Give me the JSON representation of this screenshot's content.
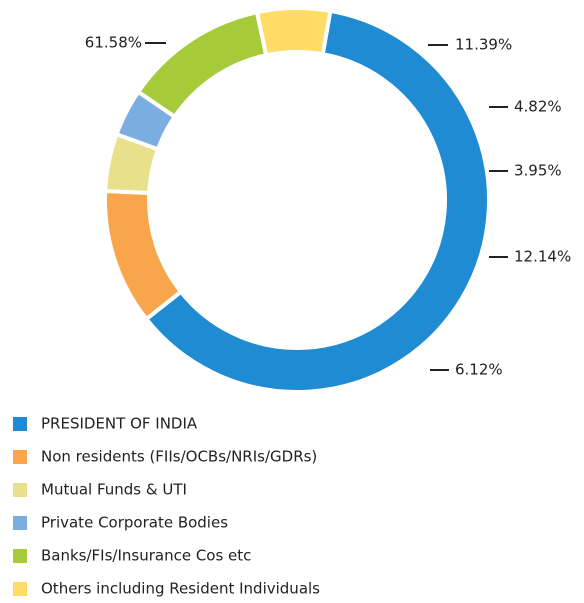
{
  "chart_data": {
    "type": "pie",
    "donut": true,
    "start_angle": 10,
    "categories": [
      "PRESIDENT OF INDIA",
      "Non residents (FIIs/OCBs/NRIs/GDRs)",
      "Mutual Funds & UTI",
      "Private Corporate Bodies",
      "Banks/FIs/Insurance Cos etc",
      "Others including Resident Individuals"
    ],
    "values": [
      61.58,
      11.39,
      4.82,
      3.95,
      12.14,
      6.12
    ],
    "value_labels": [
      "61.58%",
      "11.39%",
      "4.82%",
      "3.95%",
      "12.14%",
      "6.12%"
    ],
    "colors": [
      "#1e8bd3",
      "#f8a54b",
      "#e9e08c",
      "#7aade0",
      "#a5cb3b",
      "#ffdc66"
    ],
    "legend": "bottom-left"
  }
}
